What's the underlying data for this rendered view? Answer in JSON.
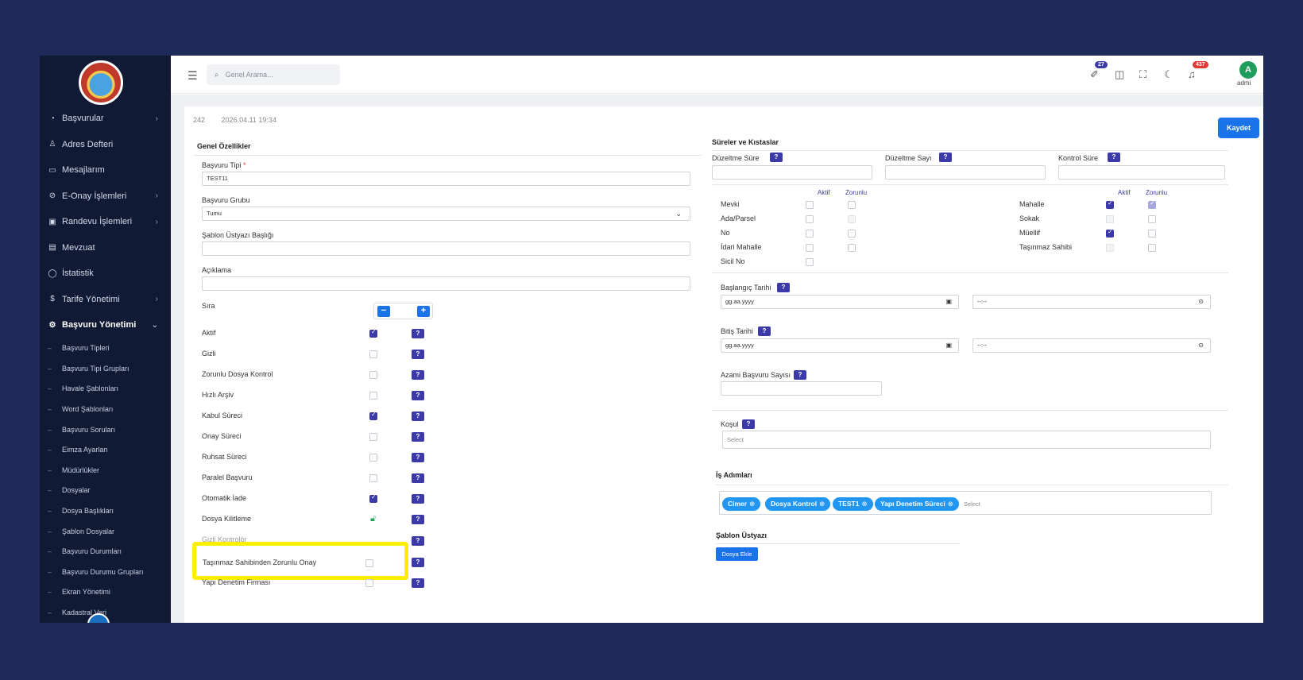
{
  "sidebar": {
    "items": [
      {
        "label": "Başvurular",
        "icon": "dashboard-icon",
        "glyph": "◔",
        "chevron": "›"
      },
      {
        "label": "Adres Defteri",
        "icon": "person-icon",
        "glyph": "♙",
        "chevron": ""
      },
      {
        "label": "Mesajlarım",
        "icon": "message-icon",
        "glyph": "▭",
        "chevron": ""
      },
      {
        "label": "E-Onay İşlemleri",
        "icon": "check-circle-icon",
        "glyph": "⊘",
        "chevron": "›"
      },
      {
        "label": "Randevu İşlemleri",
        "icon": "calendar-icon",
        "glyph": "▣",
        "chevron": "›"
      },
      {
        "label": "Mevzuat",
        "icon": "document-icon",
        "glyph": "▤",
        "chevron": ""
      },
      {
        "label": "İstatistik",
        "icon": "chart-icon",
        "glyph": "◯",
        "chevron": ""
      },
      {
        "label": "Tarife Yönetimi",
        "icon": "dollar-icon",
        "glyph": "$",
        "chevron": "›"
      },
      {
        "label": "Başvuru Yönetimi",
        "icon": "settings-icon",
        "glyph": "⚙",
        "chevron": "⌄"
      }
    ],
    "subitems": [
      "Başvuru Tipleri",
      "Başvuru Tipi Grupları",
      "Havale Şablonları",
      "Word Şablonları",
      "Başvuru Soruları",
      "Eimza Ayarları",
      "Müdürlükler",
      "Dosyalar",
      "Dosya Başlıkları",
      "Şablon Dosyalar",
      "Başvuru Durumları",
      "Başvuru Durumu Grupları",
      "Ekran Yönetimi",
      "Kadastral Veri"
    ]
  },
  "topbar": {
    "search_placeholder": "Genel Arama...",
    "badge_1": "27",
    "badge_2": "437",
    "avatar_letter": "A",
    "avatar_name": "admi"
  },
  "meta": {
    "id": "242",
    "datetime": "2026.04.11 19:34"
  },
  "save_label": "Kaydet",
  "left": {
    "section_title": "Genel Özellikler",
    "fields": {
      "type_label": "Başvuru Tipi",
      "type_value": "TEST11",
      "group_label": "Başvuru Grubu",
      "group_value": "Tumu",
      "template_label": "Şablon Üstyazı Başlığı",
      "desc_label": "Açıklama",
      "order_label": "Sıra"
    },
    "flags": [
      {
        "label": "Aktif",
        "checked": true
      },
      {
        "label": "Gizli",
        "checked": false
      },
      {
        "label": "Zorunlu Dosya Kontrol",
        "checked": false
      },
      {
        "label": "Hızlı Arşiv",
        "checked": false
      },
      {
        "label": "Kabul Süreci",
        "checked": true
      },
      {
        "label": "Onay Süreci",
        "checked": false
      },
      {
        "label": "Ruhsat Süreci",
        "checked": false
      },
      {
        "label": "Paralel Başvuru",
        "checked": false
      },
      {
        "label": "Otomatik İade",
        "checked": true
      },
      {
        "label": "Dosya Kilitleme",
        "checked": false
      },
      {
        "label": "Gizli Kontrolör",
        "checked": false
      },
      {
        "label": "Taşınmaz Sahibinden Zorunlu Onay",
        "checked": false
      },
      {
        "label": "Yapı Denetim Firması",
        "checked": false
      }
    ],
    "help": "?"
  },
  "right": {
    "section_title": "Süreler ve Kıstaslar",
    "duz_sure": "Düzeltme Süre",
    "duz_sayi": "Düzeltme Sayı",
    "kontrol_sure": "Kontrol Süre",
    "aktif_hdr": "Aktif",
    "zorunlu_hdr": "Zorunlu",
    "left_rows": [
      "Mevki",
      "Ada/Parsel",
      "No",
      "İdari Mahalle",
      "Sicil No"
    ],
    "right_rows": [
      "Mahalle",
      "Sokak",
      "Müellif",
      "Taşınmaz Sahibi"
    ],
    "start_label": "Başlangıç Tarihi",
    "end_label": "Bitiş Tarihi",
    "date_placeholder": "gg.aa.yyyy",
    "time_placeholder": "--:--",
    "max_label": "Azami Başvuru Sayısı",
    "cond_label": "Koşul",
    "select_ph": "Select",
    "steps_title": "İş Adımları",
    "steps": [
      "Cimer",
      "Dosya Kontrol",
      "TEST1",
      "Yapı Denetim Süreci"
    ],
    "template_title": "Şablon Üstyazı",
    "add_file": "Dosya Ekle"
  }
}
